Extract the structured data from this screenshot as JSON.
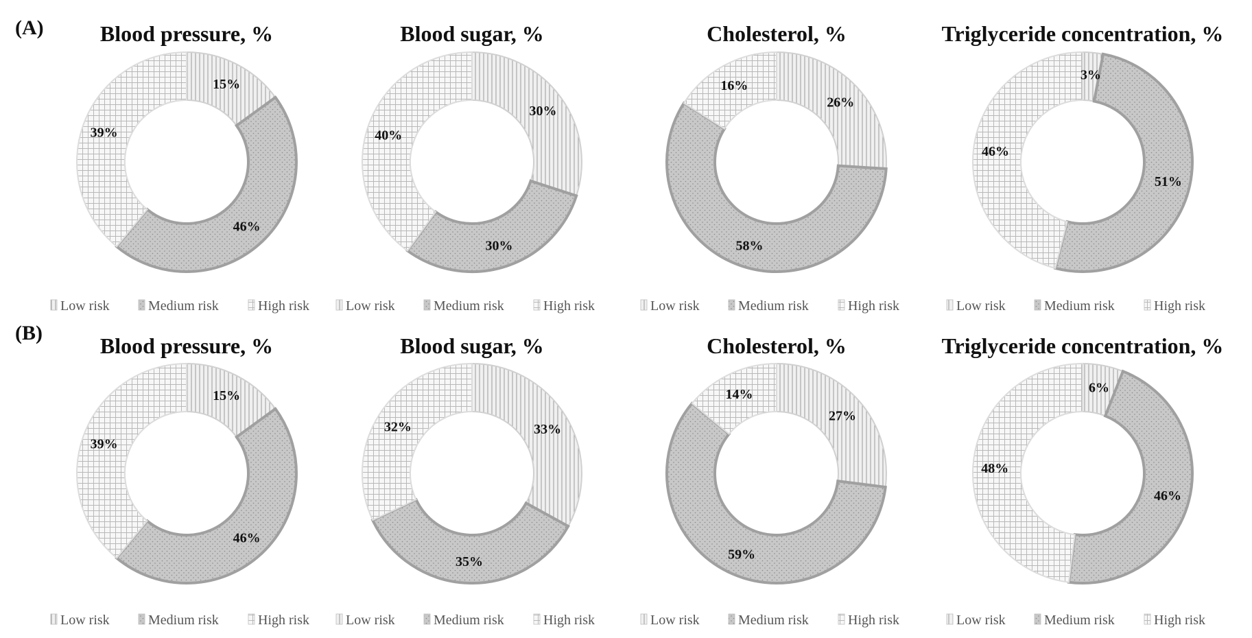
{
  "panels": [
    {
      "label": "(A)",
      "charts": [
        {
          "type": "pie",
          "title": "Blood pressure, %",
          "categories": [
            "Low risk",
            "Medium risk",
            "High risk"
          ],
          "values": [
            15,
            46,
            39
          ],
          "labels": [
            "15%",
            "46%",
            "39%"
          ]
        },
        {
          "type": "pie",
          "title": "Blood sugar, %",
          "categories": [
            "Low risk",
            "Medium risk",
            "High risk"
          ],
          "values": [
            30,
            30,
            40
          ],
          "labels": [
            "30%",
            "30%",
            "40%"
          ]
        },
        {
          "type": "pie",
          "title": "Cholesterol, %",
          "categories": [
            "Low risk",
            "Medium risk",
            "High risk"
          ],
          "values": [
            26,
            58,
            16
          ],
          "labels": [
            "26%",
            "58%",
            "16%"
          ]
        },
        {
          "type": "pie",
          "title": "Triglyceride concentration, %",
          "categories": [
            "Low risk",
            "Medium risk",
            "High risk"
          ],
          "values": [
            3,
            51,
            46
          ],
          "labels": [
            "3%",
            "51%",
            "46%"
          ]
        }
      ]
    },
    {
      "label": "(B)",
      "charts": [
        {
          "type": "pie",
          "title": "Blood pressure, %",
          "categories": [
            "Low risk",
            "Medium risk",
            "High risk"
          ],
          "values": [
            15,
            46,
            39
          ],
          "labels": [
            "15%",
            "46%",
            "39%"
          ]
        },
        {
          "type": "pie",
          "title": "Blood sugar, %",
          "categories": [
            "Low risk",
            "Medium risk",
            "High risk"
          ],
          "values": [
            33,
            35,
            32
          ],
          "labels": [
            "33%",
            "35%",
            "32%"
          ]
        },
        {
          "type": "pie",
          "title": "Cholesterol, %",
          "categories": [
            "Low risk",
            "Medium risk",
            "High risk"
          ],
          "values": [
            27,
            59,
            14
          ],
          "labels": [
            "27%",
            "59%",
            "14%"
          ]
        },
        {
          "type": "pie",
          "title": "Triglyceride concentration, %",
          "categories": [
            "Low risk",
            "Medium risk",
            "High risk"
          ],
          "values": [
            6,
            46,
            48
          ],
          "labels": [
            "6%",
            "46%",
            "48%"
          ]
        }
      ]
    }
  ],
  "style": {
    "medium_fill": "#c8c8c8",
    "medium_stroke": "#a0a0a0",
    "low_fill": "#f0f0f0",
    "high_fill": "#f7f7f7",
    "pattern_line": "#9a9a9a",
    "legend_text": "#555555"
  }
}
